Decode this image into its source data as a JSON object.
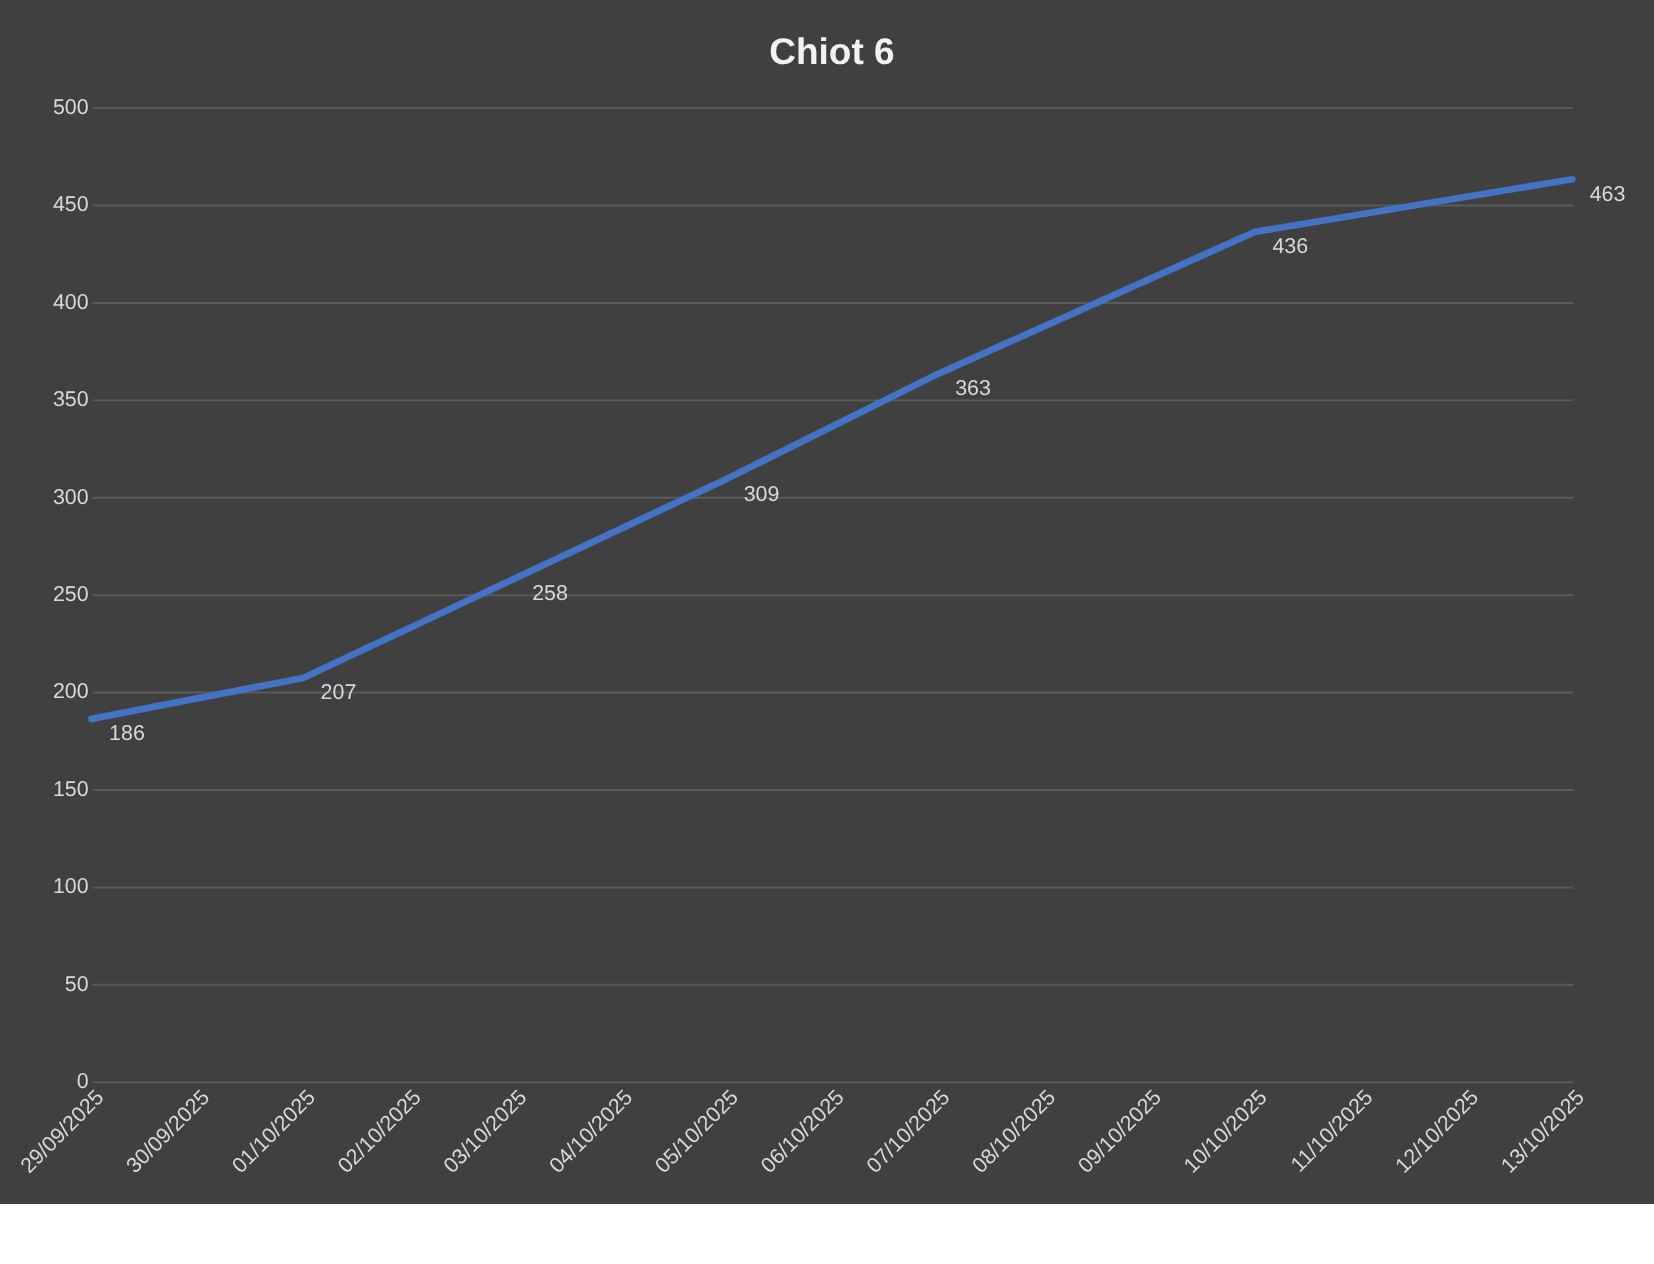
{
  "chart_data": {
    "type": "line",
    "title": "Chiot 6",
    "x": [
      "2025-09-29",
      "2025-10-01",
      "2025-10-03",
      "2025-10-05",
      "2025-10-07",
      "2025-10-10",
      "2025-10-13"
    ],
    "series": [
      {
        "color": "#4472c4",
        "values": [
          186,
          207,
          258,
          309,
          363,
          436,
          463
        ]
      }
    ],
    "xlim": [
      "2025-09-29",
      "2025-10-13"
    ],
    "xticks": [
      {
        "value": "2025-09-29",
        "label": "29/09/2025"
      },
      {
        "value": "2025-09-30",
        "label": "30/09/2025"
      },
      {
        "value": "2025-10-01",
        "label": "01/10/2025"
      },
      {
        "value": "2025-10-02",
        "label": "02/10/2025"
      },
      {
        "value": "2025-10-03",
        "label": "03/10/2025"
      },
      {
        "value": "2025-10-04",
        "label": "04/10/2025"
      },
      {
        "value": "2025-10-05",
        "label": "05/10/2025"
      },
      {
        "value": "2025-10-06",
        "label": "06/10/2025"
      },
      {
        "value": "2025-10-07",
        "label": "07/10/2025"
      },
      {
        "value": "2025-10-08",
        "label": "08/10/2025"
      },
      {
        "value": "2025-10-09",
        "label": "09/10/2025"
      },
      {
        "value": "2025-10-10",
        "label": "10/10/2025"
      },
      {
        "value": "2025-10-11",
        "label": "11/10/2025"
      },
      {
        "value": "2025-10-12",
        "label": "12/10/2025"
      },
      {
        "value": "2025-10-13",
        "label": "13/10/2025"
      }
    ],
    "ylim": [
      0,
      500
    ],
    "yticks": [
      0,
      50,
      100,
      150,
      200,
      250,
      300,
      350,
      400,
      450,
      500
    ],
    "grid": "y",
    "legend": false,
    "marker": "none",
    "line_style": "solid",
    "data_labels": true
  }
}
